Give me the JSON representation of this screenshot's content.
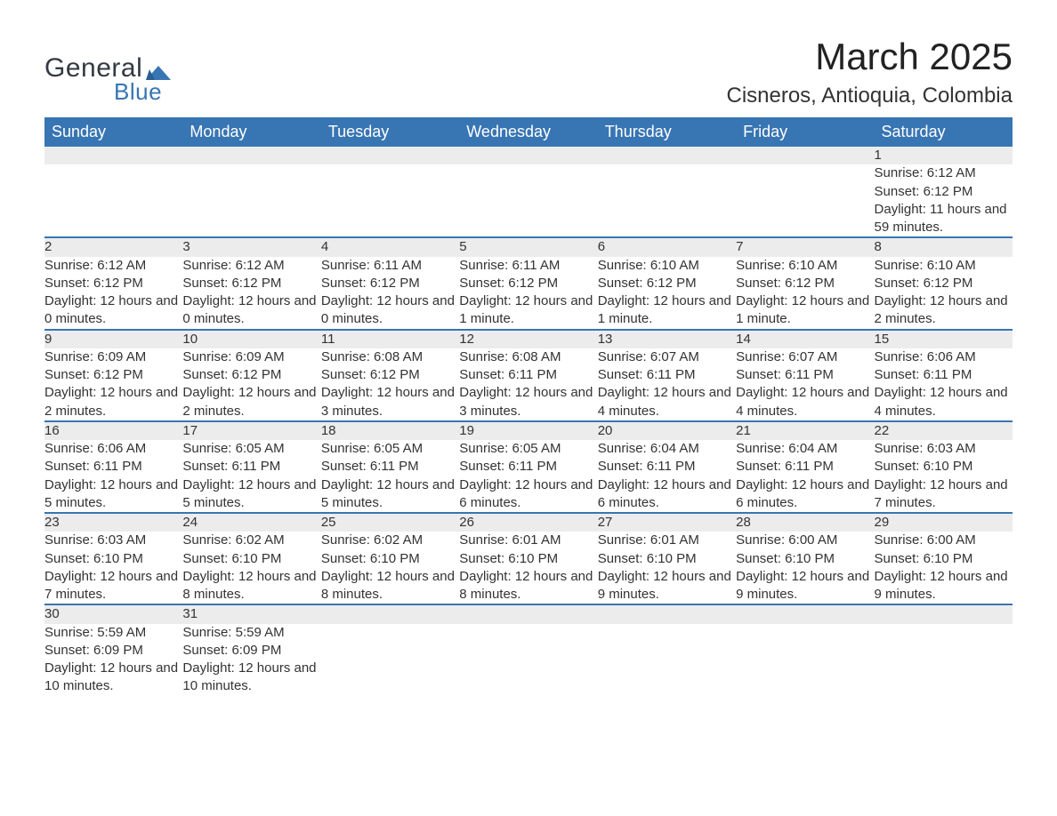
{
  "logo": {
    "text1": "General",
    "text2": "Blue",
    "brand_color": "#3875b3",
    "text_color": "#333a42"
  },
  "title": {
    "month": "March 2025",
    "location": "Cisneros, Antioquia, Colombia"
  },
  "calendar": {
    "type": "table",
    "header_bg": "#3875b3",
    "header_fg": "#ffffff",
    "daynum_bg": "#ececec",
    "divider_color": "#3875b3",
    "body_bg": "#ffffff",
    "text_color": "#333333",
    "font_size_body": 15,
    "font_size_daynum": 17,
    "font_size_header": 18,
    "columns": [
      "Sunday",
      "Monday",
      "Tuesday",
      "Wednesday",
      "Thursday",
      "Friday",
      "Saturday"
    ],
    "weeks": [
      [
        null,
        null,
        null,
        null,
        null,
        null,
        {
          "d": "1",
          "sr": "6:12 AM",
          "ss": "6:12 PM",
          "dl": "11 hours and 59 minutes."
        }
      ],
      [
        {
          "d": "2",
          "sr": "6:12 AM",
          "ss": "6:12 PM",
          "dl": "12 hours and 0 minutes."
        },
        {
          "d": "3",
          "sr": "6:12 AM",
          "ss": "6:12 PM",
          "dl": "12 hours and 0 minutes."
        },
        {
          "d": "4",
          "sr": "6:11 AM",
          "ss": "6:12 PM",
          "dl": "12 hours and 0 minutes."
        },
        {
          "d": "5",
          "sr": "6:11 AM",
          "ss": "6:12 PM",
          "dl": "12 hours and 1 minute."
        },
        {
          "d": "6",
          "sr": "6:10 AM",
          "ss": "6:12 PM",
          "dl": "12 hours and 1 minute."
        },
        {
          "d": "7",
          "sr": "6:10 AM",
          "ss": "6:12 PM",
          "dl": "12 hours and 1 minute."
        },
        {
          "d": "8",
          "sr": "6:10 AM",
          "ss": "6:12 PM",
          "dl": "12 hours and 2 minutes."
        }
      ],
      [
        {
          "d": "9",
          "sr": "6:09 AM",
          "ss": "6:12 PM",
          "dl": "12 hours and 2 minutes."
        },
        {
          "d": "10",
          "sr": "6:09 AM",
          "ss": "6:12 PM",
          "dl": "12 hours and 2 minutes."
        },
        {
          "d": "11",
          "sr": "6:08 AM",
          "ss": "6:12 PM",
          "dl": "12 hours and 3 minutes."
        },
        {
          "d": "12",
          "sr": "6:08 AM",
          "ss": "6:11 PM",
          "dl": "12 hours and 3 minutes."
        },
        {
          "d": "13",
          "sr": "6:07 AM",
          "ss": "6:11 PM",
          "dl": "12 hours and 4 minutes."
        },
        {
          "d": "14",
          "sr": "6:07 AM",
          "ss": "6:11 PM",
          "dl": "12 hours and 4 minutes."
        },
        {
          "d": "15",
          "sr": "6:06 AM",
          "ss": "6:11 PM",
          "dl": "12 hours and 4 minutes."
        }
      ],
      [
        {
          "d": "16",
          "sr": "6:06 AM",
          "ss": "6:11 PM",
          "dl": "12 hours and 5 minutes."
        },
        {
          "d": "17",
          "sr": "6:05 AM",
          "ss": "6:11 PM",
          "dl": "12 hours and 5 minutes."
        },
        {
          "d": "18",
          "sr": "6:05 AM",
          "ss": "6:11 PM",
          "dl": "12 hours and 5 minutes."
        },
        {
          "d": "19",
          "sr": "6:05 AM",
          "ss": "6:11 PM",
          "dl": "12 hours and 6 minutes."
        },
        {
          "d": "20",
          "sr": "6:04 AM",
          "ss": "6:11 PM",
          "dl": "12 hours and 6 minutes."
        },
        {
          "d": "21",
          "sr": "6:04 AM",
          "ss": "6:11 PM",
          "dl": "12 hours and 6 minutes."
        },
        {
          "d": "22",
          "sr": "6:03 AM",
          "ss": "6:10 PM",
          "dl": "12 hours and 7 minutes."
        }
      ],
      [
        {
          "d": "23",
          "sr": "6:03 AM",
          "ss": "6:10 PM",
          "dl": "12 hours and 7 minutes."
        },
        {
          "d": "24",
          "sr": "6:02 AM",
          "ss": "6:10 PM",
          "dl": "12 hours and 8 minutes."
        },
        {
          "d": "25",
          "sr": "6:02 AM",
          "ss": "6:10 PM",
          "dl": "12 hours and 8 minutes."
        },
        {
          "d": "26",
          "sr": "6:01 AM",
          "ss": "6:10 PM",
          "dl": "12 hours and 8 minutes."
        },
        {
          "d": "27",
          "sr": "6:01 AM",
          "ss": "6:10 PM",
          "dl": "12 hours and 9 minutes."
        },
        {
          "d": "28",
          "sr": "6:00 AM",
          "ss": "6:10 PM",
          "dl": "12 hours and 9 minutes."
        },
        {
          "d": "29",
          "sr": "6:00 AM",
          "ss": "6:10 PM",
          "dl": "12 hours and 9 minutes."
        }
      ],
      [
        {
          "d": "30",
          "sr": "5:59 AM",
          "ss": "6:09 PM",
          "dl": "12 hours and 10 minutes."
        },
        {
          "d": "31",
          "sr": "5:59 AM",
          "ss": "6:09 PM",
          "dl": "12 hours and 10 minutes."
        },
        null,
        null,
        null,
        null,
        null
      ]
    ],
    "labels": {
      "sunrise": "Sunrise: ",
      "sunset": "Sunset: ",
      "daylight": "Daylight: "
    }
  }
}
